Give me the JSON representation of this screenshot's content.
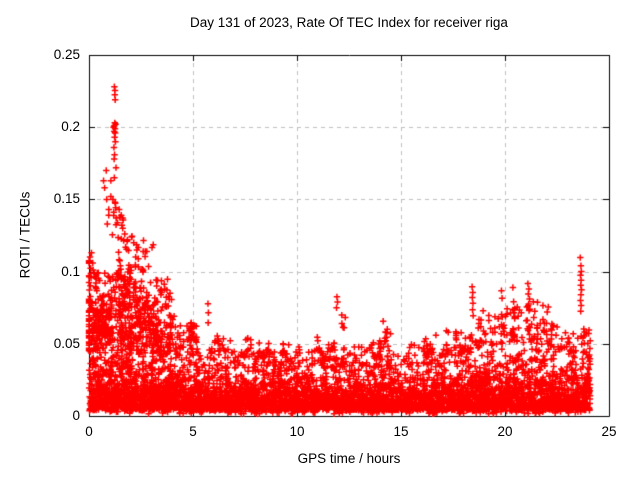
{
  "chart_data": {
    "type": "scatter",
    "title": "Day 131 of 2023, Rate Of TEC Index for receiver riga",
    "xlabel": "GPS time / hours",
    "ylabel": "ROTI / TECUs",
    "xlim": [
      0,
      25
    ],
    "ylim": [
      0,
      0.25
    ],
    "xticks": [
      0,
      5,
      10,
      15,
      20,
      25
    ],
    "yticks": [
      0,
      0.05,
      0.1,
      0.15,
      0.2,
      0.25
    ],
    "grid": "dashed-at-major-ticks",
    "legend": "none",
    "marker": "plus",
    "marker_color": "#ff0000",
    "axis_color": "#000000",
    "grid_color": "#bfbfbf",
    "background_color": "#ffffff",
    "x_data_range": [
      0,
      24.1
    ],
    "seed": 1311,
    "band": {
      "description": "dense baseline scatter band present across all 24 hours",
      "base": 0.004,
      "profile": [
        {
          "h": 0,
          "top": 0.075,
          "n": 260
        },
        {
          "h": 1,
          "top": 0.09,
          "n": 280
        },
        {
          "h": 2,
          "top": 0.08,
          "n": 260
        },
        {
          "h": 3,
          "top": 0.07,
          "n": 240
        },
        {
          "h": 4,
          "top": 0.055,
          "n": 220
        },
        {
          "h": 5,
          "top": 0.048,
          "n": 200
        },
        {
          "h": 6,
          "top": 0.05,
          "n": 200
        },
        {
          "h": 7,
          "top": 0.045,
          "n": 200
        },
        {
          "h": 8,
          "top": 0.045,
          "n": 200
        },
        {
          "h": 9,
          "top": 0.042,
          "n": 200
        },
        {
          "h": 10,
          "top": 0.045,
          "n": 200
        },
        {
          "h": 11,
          "top": 0.048,
          "n": 200
        },
        {
          "h": 12,
          "top": 0.042,
          "n": 200
        },
        {
          "h": 13,
          "top": 0.048,
          "n": 200
        },
        {
          "h": 14,
          "top": 0.045,
          "n": 200
        },
        {
          "h": 15,
          "top": 0.038,
          "n": 190
        },
        {
          "h": 16,
          "top": 0.045,
          "n": 200
        },
        {
          "h": 17,
          "top": 0.048,
          "n": 200
        },
        {
          "h": 18,
          "top": 0.055,
          "n": 210
        },
        {
          "h": 19,
          "top": 0.058,
          "n": 210
        },
        {
          "h": 20,
          "top": 0.06,
          "n": 220
        },
        {
          "h": 21,
          "top": 0.062,
          "n": 220
        },
        {
          "h": 22,
          "top": 0.05,
          "n": 210
        },
        {
          "h": 23,
          "top": 0.055,
          "n": 210
        }
      ]
    },
    "clusters": [
      {
        "x": 0.15,
        "sx": 0.3,
        "ymin": 0.06,
        "ymax": 0.112,
        "n": 30
      },
      {
        "x": 0.35,
        "sx": 0.7,
        "ymin": 0.045,
        "ymax": 0.08,
        "n": 90
      },
      {
        "x": 1.4,
        "sx": 1.2,
        "ymin": 0.05,
        "ymax": 0.1,
        "n": 150
      },
      {
        "x": 2.5,
        "sx": 1.0,
        "ymin": 0.045,
        "ymax": 0.095,
        "n": 110
      },
      {
        "x": 3.3,
        "sx": 0.9,
        "ymin": 0.042,
        "ymax": 0.085,
        "n": 70
      },
      {
        "x": 4.3,
        "sx": 0.9,
        "ymin": 0.038,
        "ymax": 0.065,
        "n": 45
      },
      {
        "x": 1.9,
        "sx": 0.5,
        "ymin": 0.1,
        "ymax": 0.125,
        "n": 22
      },
      {
        "x": 2.7,
        "sx": 0.5,
        "ymin": 0.1,
        "ymax": 0.122,
        "n": 14
      },
      {
        "x": 1.35,
        "sx": 0.3,
        "ymin": 0.125,
        "ymax": 0.148,
        "n": 12
      },
      {
        "x": 3.6,
        "sx": 0.2,
        "ymin": 0.086,
        "ymax": 0.097,
        "n": 6
      },
      {
        "x": 5.0,
        "sx": 0.25,
        "ymin": 0.052,
        "ymax": 0.065,
        "n": 10
      },
      {
        "x": 6.35,
        "sx": 0.3,
        "ymin": 0.045,
        "ymax": 0.058,
        "n": 10
      },
      {
        "x": 7.6,
        "sx": 0.2,
        "ymin": 0.044,
        "ymax": 0.055,
        "n": 7
      },
      {
        "x": 8.6,
        "sx": 0.2,
        "ymin": 0.042,
        "ymax": 0.052,
        "n": 5
      },
      {
        "x": 9.45,
        "sx": 0.2,
        "ymin": 0.042,
        "ymax": 0.052,
        "n": 5
      },
      {
        "x": 11.1,
        "sx": 0.25,
        "ymin": 0.042,
        "ymax": 0.056,
        "n": 7
      },
      {
        "x": 12.3,
        "sx": 0.15,
        "ymin": 0.058,
        "ymax": 0.071,
        "n": 5
      },
      {
        "x": 13.8,
        "sx": 0.25,
        "ymin": 0.042,
        "ymax": 0.054,
        "n": 9
      },
      {
        "x": 14.3,
        "sx": 0.2,
        "ymin": 0.05,
        "ymax": 0.067,
        "n": 9
      },
      {
        "x": 15.4,
        "sx": 0.3,
        "ymin": 0.034,
        "ymax": 0.044,
        "n": 6
      },
      {
        "x": 16.4,
        "sx": 0.3,
        "ymin": 0.04,
        "ymax": 0.056,
        "n": 8
      },
      {
        "x": 17.4,
        "sx": 0.3,
        "ymin": 0.042,
        "ymax": 0.06,
        "n": 8
      },
      {
        "x": 18.0,
        "sx": 0.4,
        "ymin": 0.04,
        "ymax": 0.058,
        "n": 12
      },
      {
        "x": 19.0,
        "sx": 0.3,
        "ymin": 0.05,
        "ymax": 0.078,
        "n": 10
      },
      {
        "x": 19.6,
        "sx": 0.4,
        "ymin": 0.045,
        "ymax": 0.07,
        "n": 14
      },
      {
        "x": 20.2,
        "sx": 0.4,
        "ymin": 0.05,
        "ymax": 0.075,
        "n": 14
      },
      {
        "x": 20.9,
        "sx": 0.5,
        "ymin": 0.05,
        "ymax": 0.08,
        "n": 20
      },
      {
        "x": 21.6,
        "sx": 0.5,
        "ymin": 0.048,
        "ymax": 0.08,
        "n": 22
      },
      {
        "x": 22.3,
        "sx": 0.4,
        "ymin": 0.044,
        "ymax": 0.068,
        "n": 14
      },
      {
        "x": 23.0,
        "sx": 0.3,
        "ymin": 0.04,
        "ymax": 0.058,
        "n": 10
      },
      {
        "x": 23.9,
        "sx": 0.25,
        "ymin": 0.042,
        "ymax": 0.06,
        "n": 16
      },
      {
        "x": 7.0,
        "sx": 1.8,
        "ymin": 0.033,
        "ymax": 0.047,
        "n": 45
      },
      {
        "x": 10.3,
        "sx": 2.0,
        "ymin": 0.032,
        "ymax": 0.046,
        "n": 50
      },
      {
        "x": 13.0,
        "sx": 1.6,
        "ymin": 0.033,
        "ymax": 0.048,
        "n": 45
      },
      {
        "x": 16.8,
        "sx": 1.6,
        "ymin": 0.034,
        "ymax": 0.05,
        "n": 45
      }
    ],
    "peak_points": [
      [
        0.12,
        0.113
      ],
      [
        0.18,
        0.106
      ],
      [
        0.25,
        0.099
      ],
      [
        0.75,
        0.158
      ],
      [
        0.85,
        0.15
      ],
      [
        0.95,
        0.143
      ],
      [
        1.05,
        0.163
      ],
      [
        1.18,
        0.2
      ],
      [
        1.22,
        0.201
      ],
      [
        1.25,
        0.199
      ],
      [
        1.28,
        0.202
      ],
      [
        1.24,
        0.203
      ],
      [
        1.21,
        0.197
      ],
      [
        1.26,
        0.196
      ],
      [
        1.23,
        0.193
      ],
      [
        1.27,
        0.19
      ],
      [
        1.22,
        0.228
      ],
      [
        1.25,
        0.2255
      ],
      [
        1.24,
        0.2225
      ],
      [
        1.26,
        0.219
      ],
      [
        1.2,
        0.186
      ],
      [
        1.23,
        0.181
      ],
      [
        1.21,
        0.178
      ],
      [
        1.3,
        0.172
      ],
      [
        0.83,
        0.17
      ],
      [
        1.22,
        0.165
      ],
      [
        0.7,
        0.163
      ],
      [
        1.05,
        0.152
      ],
      [
        1.15,
        0.15
      ],
      [
        1.25,
        0.148
      ],
      [
        0.95,
        0.139
      ],
      [
        1.45,
        0.143
      ],
      [
        1.55,
        0.139
      ],
      [
        0.88,
        0.133
      ],
      [
        1.62,
        0.13
      ],
      [
        1.72,
        0.126
      ],
      [
        1.85,
        0.122
      ],
      [
        2.05,
        0.124
      ],
      [
        2.15,
        0.12
      ],
      [
        2.62,
        0.1215
      ],
      [
        5.72,
        0.0778
      ],
      [
        5.74,
        0.0715
      ],
      [
        5.73,
        0.0646
      ],
      [
        11.92,
        0.0825
      ],
      [
        11.95,
        0.079
      ],
      [
        11.9,
        0.075
      ],
      [
        18.42,
        0.0895
      ],
      [
        18.45,
        0.0855
      ],
      [
        18.43,
        0.082
      ],
      [
        18.46,
        0.078
      ],
      [
        18.44,
        0.0735
      ],
      [
        18.47,
        0.0695
      ],
      [
        19.83,
        0.0868
      ],
      [
        19.86,
        0.0815
      ],
      [
        20.38,
        0.089
      ],
      [
        21.1,
        0.0917
      ],
      [
        21.15,
        0.088
      ],
      [
        21.12,
        0.0845
      ],
      [
        21.18,
        0.081
      ],
      [
        21.14,
        0.0775
      ],
      [
        21.2,
        0.074
      ],
      [
        23.62,
        0.1097
      ],
      [
        23.65,
        0.104
      ],
      [
        23.67,
        0.1
      ],
      [
        23.63,
        0.0975
      ],
      [
        23.66,
        0.094
      ],
      [
        23.64,
        0.0905
      ],
      [
        23.68,
        0.0875
      ],
      [
        23.65,
        0.084
      ],
      [
        23.63,
        0.08
      ],
      [
        23.66,
        0.0765
      ],
      [
        23.64,
        0.0725
      ]
    ]
  }
}
